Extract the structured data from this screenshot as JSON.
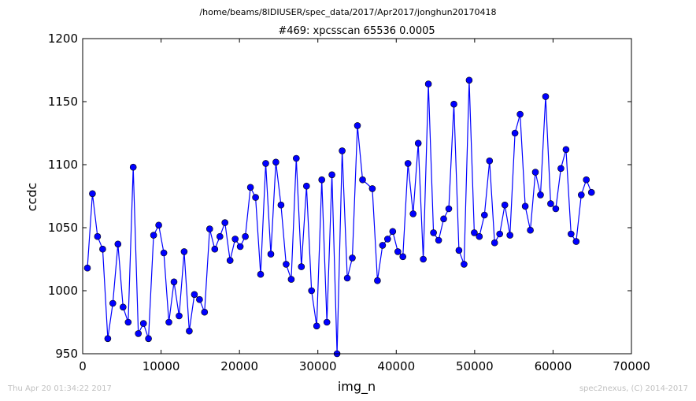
{
  "figure": {
    "suptitle": "/home/beams/8IDIUSER/spec_data/2017/Apr2017/jonghun20170418",
    "footer_left": "Thu Apr 20 01:34:22 2017",
    "footer_right": "spec2nexus, (C) 2014-2017"
  },
  "chart_data": {
    "type": "line",
    "title": "#469: xpcsscan 65536 0.0005",
    "xlabel": "img_n",
    "ylabel": "ccdc",
    "xlim": [
      0,
      70000
    ],
    "ylim": [
      950,
      1200
    ],
    "xticks": [
      0,
      10000,
      20000,
      30000,
      40000,
      50000,
      60000,
      70000
    ],
    "yticks": [
      950,
      1000,
      1050,
      1100,
      1150,
      1200
    ],
    "grid": false,
    "legend": "none",
    "marker": "circle",
    "color": "#0000ff",
    "series": [
      {
        "x": [
          600,
          1250,
          1900,
          2550,
          3200,
          3850,
          4500,
          5150,
          5800,
          6450,
          7100,
          7750,
          8400,
          9050,
          9700,
          10350,
          11000,
          11650,
          12300,
          12950,
          13600,
          14250,
          14900,
          15550,
          16200,
          16850,
          17500,
          18150,
          18800,
          19450,
          20100,
          20750,
          21400,
          22050,
          22700,
          23350,
          24000,
          24650,
          25300,
          25950,
          26600,
          27250,
          27900,
          28550,
          29200,
          29850,
          30500,
          31150,
          31800,
          32450,
          33100,
          33750,
          34400,
          35050,
          35700,
          36950,
          37600,
          38250,
          38900,
          39550,
          40200,
          40850,
          41500,
          42150,
          42800,
          43450,
          44100,
          44750,
          45400,
          46050,
          46700,
          47350,
          48000,
          48650,
          49300,
          49950,
          50600,
          51250,
          51900,
          52550,
          53200,
          53850,
          54500,
          55150,
          55800,
          56450,
          57100,
          57750,
          58400,
          59050,
          59700,
          60350,
          61000,
          61650,
          62300,
          62950,
          63600,
          64250,
          64900
        ],
        "y": [
          1018,
          1077,
          1043,
          1033,
          962,
          990,
          1037,
          987,
          975,
          1098,
          966,
          974,
          962,
          1044,
          1052,
          1030,
          975,
          1007,
          980,
          1031,
          968,
          997,
          993,
          983,
          1049,
          1033,
          1043,
          1054,
          1024,
          1041,
          1035,
          1043,
          1082,
          1074,
          1013,
          1101,
          1029,
          1102,
          1068,
          1021,
          1009,
          1105,
          1019,
          1083,
          1000,
          972,
          1088,
          975,
          1092,
          950,
          1111,
          1010,
          1026,
          1131,
          1088,
          1081,
          1008,
          1036,
          1041,
          1047,
          1031,
          1027,
          1101,
          1061,
          1117,
          1025,
          1164,
          1046,
          1040,
          1057,
          1065,
          1148,
          1032,
          1021,
          1167,
          1046,
          1043,
          1060,
          1103,
          1038,
          1045,
          1068,
          1044,
          1125,
          1140,
          1067,
          1048,
          1094,
          1076,
          1154,
          1069,
          1065,
          1097,
          1112,
          1045,
          1039,
          1076,
          1088,
          1078
        ]
      }
    ]
  }
}
